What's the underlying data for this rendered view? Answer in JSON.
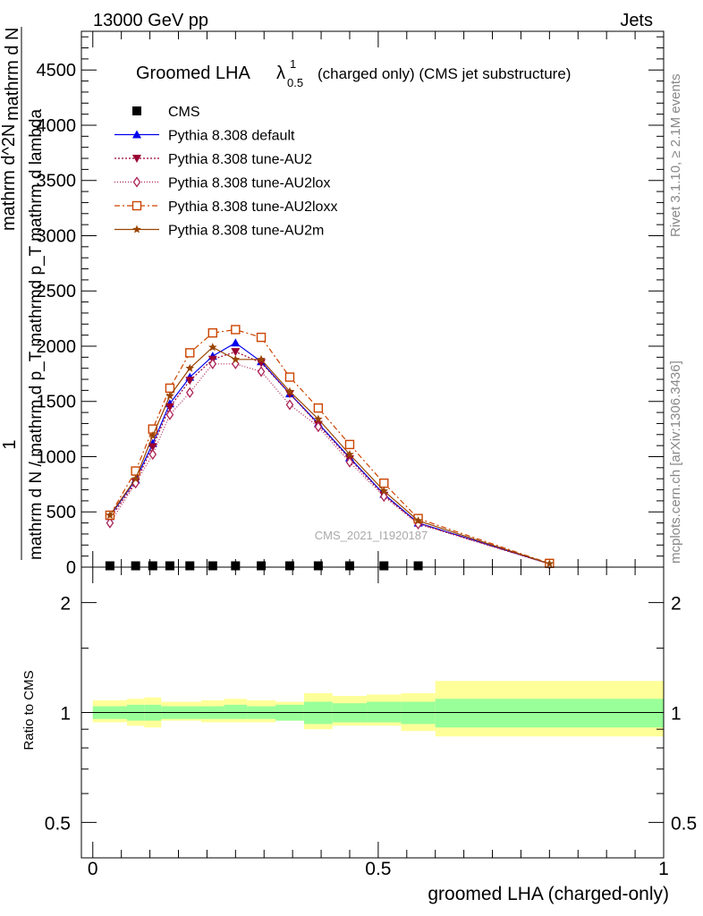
{
  "header": {
    "left": "13000 GeV pp",
    "right": "Jets"
  },
  "side": {
    "rivet": "Rivet 3.1.10, ≥ 2.1M events",
    "mcplots": "mcplots.cern.ch [arXiv:1306.3436]"
  },
  "watermark": "CMS_2021_I1920187",
  "chart_data": [
    {
      "type": "line",
      "title_main": "Groomed LHA",
      "title_symbol": "λ",
      "title_sup": "1",
      "title_sub": "0.5",
      "title_rest": "(charged only) (CMS jet substructure)",
      "ylabel_lines": [
        "1",
        "mathrm d N / mathrm d p_T mathrmd p_T mathrm d lambda",
        "mathrm d^2N",
        "mathrm d N"
      ],
      "ylim": [
        0,
        4850
      ],
      "yticks": [
        0,
        500,
        1000,
        1500,
        2000,
        2500,
        3000,
        3500,
        4000,
        4500
      ],
      "xlim": [
        -0.02,
        1.0
      ],
      "x": [
        0.03,
        0.075,
        0.105,
        0.135,
        0.17,
        0.21,
        0.25,
        0.295,
        0.345,
        0.395,
        0.45,
        0.51,
        0.57,
        0.8
      ],
      "series": [
        {
          "name": "CMS",
          "color": "#000000",
          "marker": "square-filled",
          "dash": "none",
          "values": [
            12,
            12,
            12,
            12,
            12,
            12,
            12,
            12,
            12,
            12,
            12,
            12,
            12,
            null
          ]
        },
        {
          "name": "Pythia 8.308 default",
          "color": "#0000ee",
          "marker": "triangle-up-filled",
          "dash": "solid",
          "values": [
            460,
            790,
            1120,
            1480,
            1720,
            1910,
            2030,
            1860,
            1570,
            1300,
            990,
            660,
            400,
            30
          ]
        },
        {
          "name": "Pythia 8.308 tune-AU2",
          "color": "#990033",
          "marker": "triangle-down-filled",
          "dash": "2,2",
          "values": [
            440,
            770,
            1090,
            1450,
            1690,
            1880,
            1950,
            1850,
            1570,
            1290,
            980,
            650,
            395,
            29
          ]
        },
        {
          "name": "Pythia 8.308 tune-AU2lox",
          "color": "#aa2255",
          "marker": "diamond-open",
          "dash": "1,2",
          "values": [
            400,
            760,
            1020,
            1380,
            1580,
            1840,
            1840,
            1770,
            1470,
            1270,
            950,
            640,
            390,
            28
          ]
        },
        {
          "name": "Pythia 8.308 tune-AU2loxx",
          "color": "#cc4400",
          "marker": "square-open",
          "dash": "6,3,2,3",
          "values": [
            470,
            870,
            1250,
            1620,
            1940,
            2120,
            2150,
            2080,
            1720,
            1440,
            1110,
            760,
            440,
            34
          ]
        },
        {
          "name": "Pythia 8.308 tune-AU2m",
          "color": "#994400",
          "marker": "star",
          "dash": "solid",
          "values": [
            470,
            800,
            1190,
            1550,
            1800,
            1990,
            1880,
            1880,
            1590,
            1340,
            1020,
            690,
            420,
            31
          ]
        }
      ]
    },
    {
      "type": "area",
      "ylabel": "Ratio to CMS",
      "xlabel": "groomed LHA (charged-only)",
      "log_y": true,
      "ylim": [
        0.4,
        2.5
      ],
      "yticks": [
        0.5,
        1,
        2
      ],
      "xticks": [
        0,
        0.5,
        1
      ],
      "xtick_labels": [
        "0",
        "0.5",
        "1"
      ],
      "bins": [
        0.0,
        0.045,
        0.06,
        0.09,
        0.12,
        0.15,
        0.19,
        0.23,
        0.27,
        0.32,
        0.37,
        0.42,
        0.48,
        0.54,
        0.6,
        1.0
      ],
      "band_inner": [
        [
          0.96,
          1.04
        ],
        [
          0.96,
          1.04
        ],
        [
          0.95,
          1.05
        ],
        [
          0.95,
          1.05
        ],
        [
          0.96,
          1.04
        ],
        [
          0.96,
          1.04
        ],
        [
          0.96,
          1.04
        ],
        [
          0.96,
          1.05
        ],
        [
          0.96,
          1.04
        ],
        [
          0.95,
          1.05
        ],
        [
          0.93,
          1.07
        ],
        [
          0.94,
          1.06
        ],
        [
          0.94,
          1.07
        ],
        [
          0.93,
          1.07
        ],
        [
          0.91,
          1.09
        ]
      ],
      "band_outer": [
        [
          0.94,
          1.08
        ],
        [
          0.94,
          1.08
        ],
        [
          0.92,
          1.09
        ],
        [
          0.91,
          1.1
        ],
        [
          0.95,
          1.07
        ],
        [
          0.95,
          1.07
        ],
        [
          0.94,
          1.08
        ],
        [
          0.94,
          1.09
        ],
        [
          0.94,
          1.08
        ],
        [
          0.95,
          1.07
        ],
        [
          0.9,
          1.13
        ],
        [
          0.92,
          1.11
        ],
        [
          0.92,
          1.12
        ],
        [
          0.89,
          1.13
        ],
        [
          0.86,
          1.22
        ]
      ]
    }
  ]
}
